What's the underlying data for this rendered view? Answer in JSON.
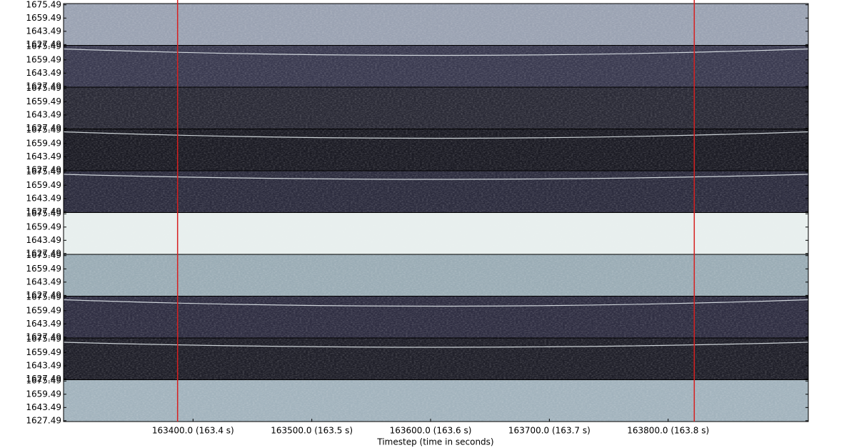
{
  "chart_data": {
    "type": "spectrogram",
    "x_label": "Timestep (time in seconds)",
    "xlim": [
      163291,
      163918
    ],
    "xticks": [
      {
        "value": 163400,
        "label": "163400.0 (163.4 s)"
      },
      {
        "value": 163500,
        "label": "163500.0 (163.5 s)"
      },
      {
        "value": 163600,
        "label": "163600.0 (163.6 s)"
      },
      {
        "value": 163700,
        "label": "163700.0 (163.7 s)"
      },
      {
        "value": 163800,
        "label": "163800.0 (163.8 s)"
      }
    ],
    "ylim": [
      1626.5,
      1677
    ],
    "yticks": [
      1675.49,
      1659.49,
      1643.49,
      1627.49
    ],
    "markers": [
      163387,
      163822
    ],
    "marker_color": "#d62020",
    "panels": [
      {
        "color": "#9aa2b2",
        "trace": false
      },
      {
        "color": "#3a3a50",
        "trace": true
      },
      {
        "color": "#2a2a36",
        "trace": false
      },
      {
        "color": "#1b1b24",
        "trace": true
      },
      {
        "color": "#2c2c3e",
        "trace": true
      },
      {
        "color": "#e8efee",
        "trace": false
      },
      {
        "color": "#9aacb5",
        "trace": false
      },
      {
        "color": "#2f2e42",
        "trace": true
      },
      {
        "color": "#1f1f29",
        "trace": true
      },
      {
        "color": "#a2b3bd",
        "trace": false
      }
    ]
  }
}
